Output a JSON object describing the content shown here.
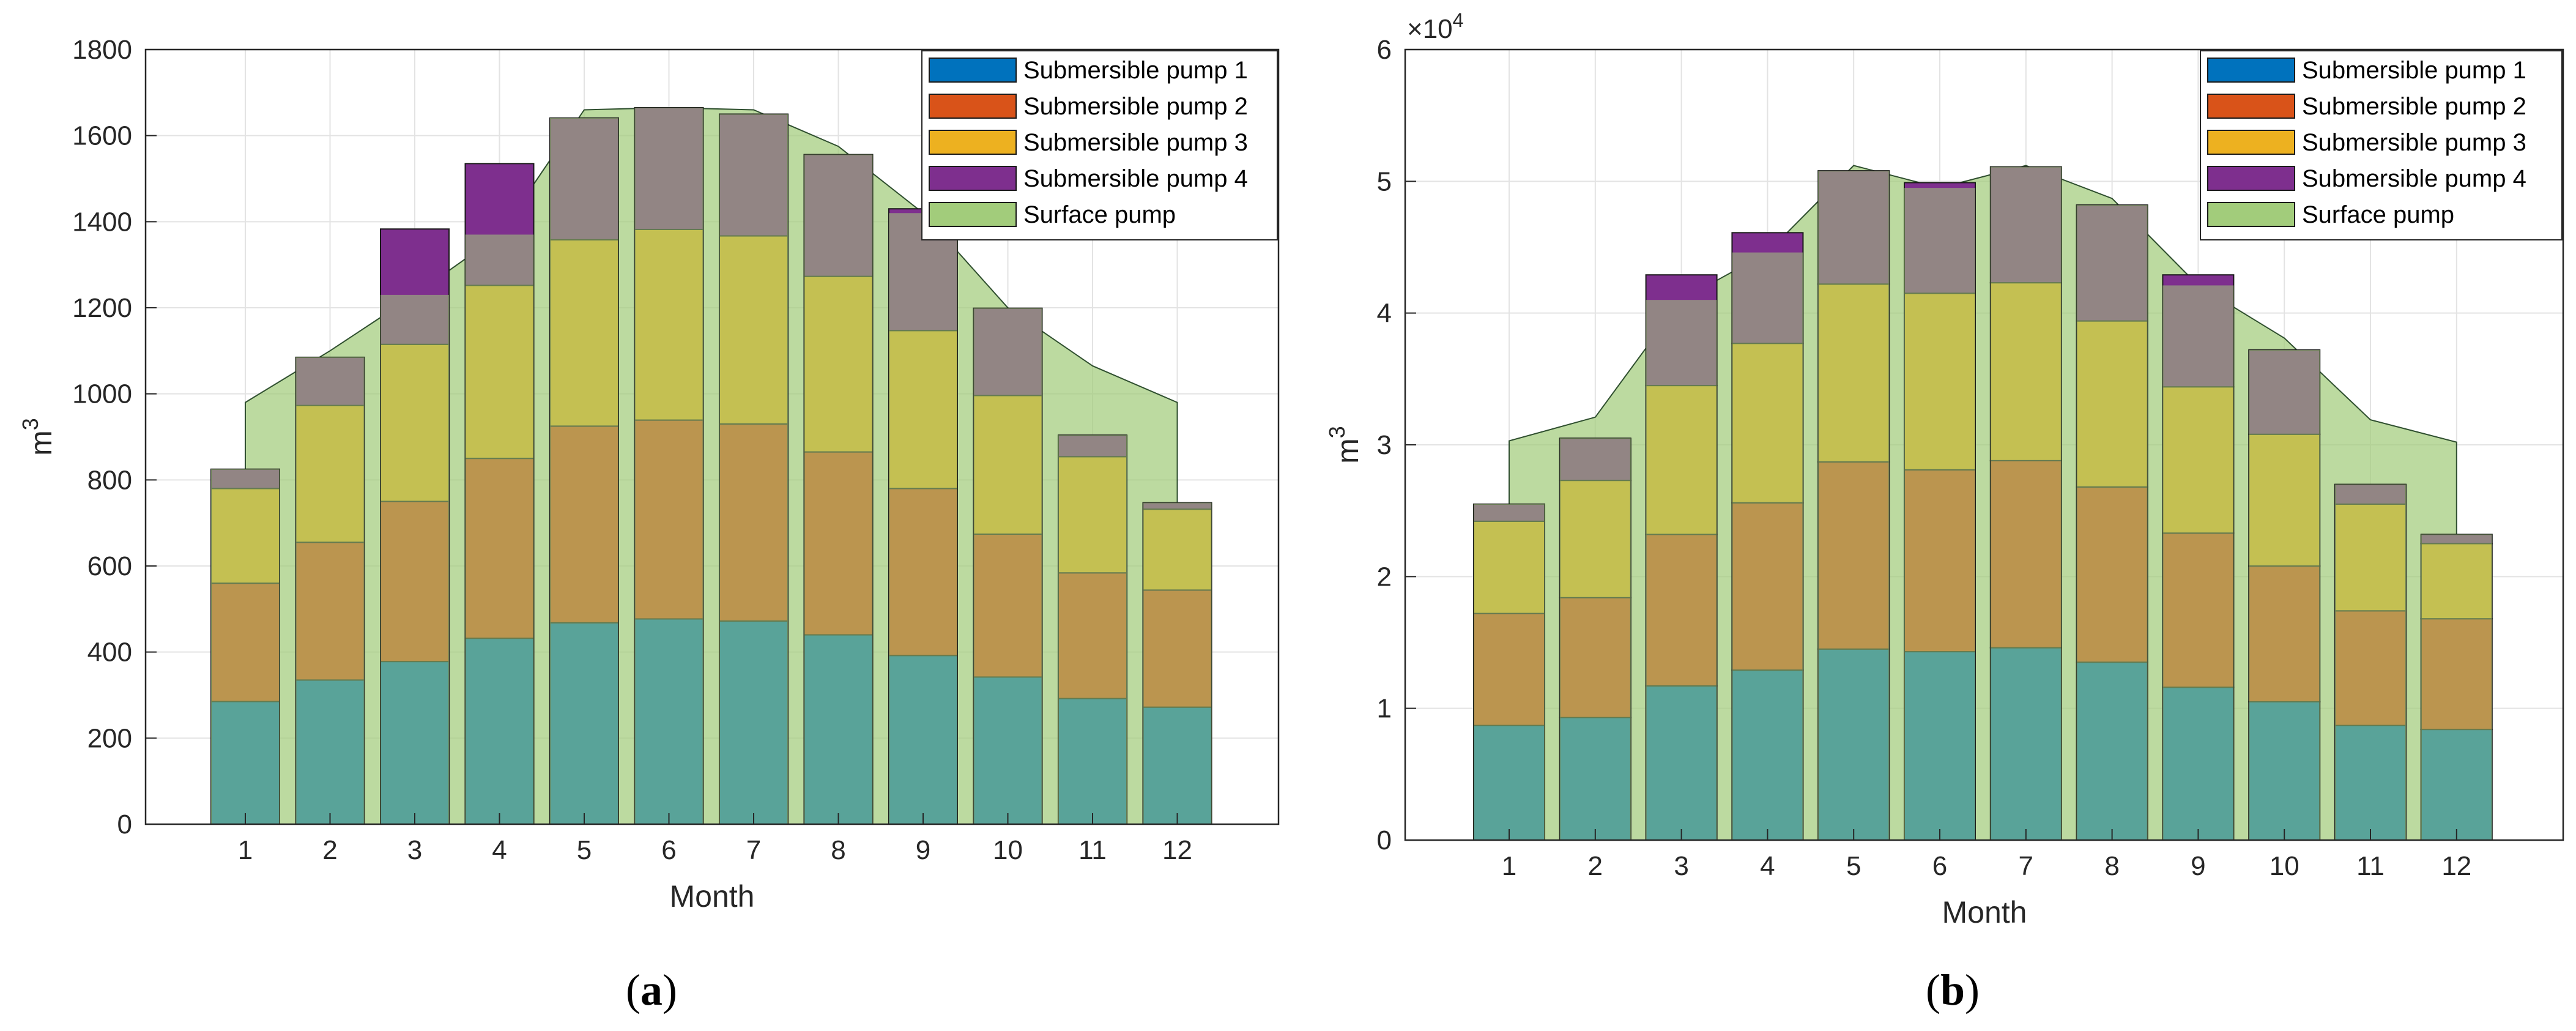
{
  "chart_data": [
    {
      "id": "a",
      "type": "bar",
      "subtype": "stacked-bar-with-area",
      "caption_letter": "a",
      "xlabel": "Month",
      "ylabel": "m",
      "ylabel_superscript": "3",
      "y_exponent_label": "",
      "categories": [
        "1",
        "2",
        "3",
        "4",
        "5",
        "6",
        "7",
        "8",
        "9",
        "10",
        "11",
        "12"
      ],
      "yticks": [
        "0",
        "200",
        "400",
        "600",
        "800",
        "1000",
        "1200",
        "1400",
        "1600",
        "1800"
      ],
      "ylim": [
        0,
        1800
      ],
      "grid": true,
      "legend_position": "top-right",
      "legend": [
        "Submersible pump 1",
        "Submersible pump 2",
        "Submersible pump 3",
        "Submersible pump 4",
        "Surface pump"
      ],
      "series": [
        {
          "name": "Submersible pump 1",
          "color": "#0072BD",
          "values": [
            285,
            335,
            378,
            432,
            468,
            477,
            472,
            440,
            392,
            342,
            292,
            272
          ]
        },
        {
          "name": "Submersible pump 2",
          "color": "#D95319",
          "values": [
            275,
            320,
            372,
            418,
            457,
            462,
            458,
            425,
            388,
            332,
            292,
            272
          ]
        },
        {
          "name": "Submersible pump 3",
          "color": "#EDB120",
          "values": [
            220,
            318,
            365,
            402,
            433,
            443,
            437,
            408,
            367,
            322,
            270,
            188
          ]
        },
        {
          "name": "Submersible pump 4",
          "color": "#7E2F8E",
          "values": [
            45,
            112,
            268,
            283,
            283,
            283,
            283,
            283,
            283,
            203,
            50,
            15
          ]
        },
        {
          "name": "Surface pump",
          "color": "#A2CC7B",
          "values": [
            980,
            1100,
            1230,
            1370,
            1660,
            1665,
            1660,
            1575,
            1420,
            1200,
            1065,
            980
          ]
        }
      ]
    },
    {
      "id": "b",
      "type": "bar",
      "subtype": "stacked-bar-with-area",
      "caption_letter": "b",
      "xlabel": "Month",
      "ylabel": "m",
      "ylabel_superscript": "3",
      "y_exponent_label": "×10",
      "y_exponent_power": "4",
      "categories": [
        "1",
        "2",
        "3",
        "4",
        "5",
        "6",
        "7",
        "8",
        "9",
        "10",
        "11",
        "12"
      ],
      "yticks": [
        "0",
        "1",
        "2",
        "3",
        "4",
        "5",
        "6"
      ],
      "ylim": [
        0,
        6
      ],
      "grid": true,
      "legend_position": "top-right",
      "legend": [
        "Submersible pump 1",
        "Submersible pump 2",
        "Submersible pump 3",
        "Submersible pump 4",
        "Surface pump"
      ],
      "series": [
        {
          "name": "Submersible pump 1",
          "color": "#0072BD",
          "values": [
            0.87,
            0.93,
            1.17,
            1.29,
            1.45,
            1.43,
            1.46,
            1.35,
            1.16,
            1.05,
            0.87,
            0.84
          ]
        },
        {
          "name": "Submersible pump 2",
          "color": "#D95319",
          "values": [
            0.85,
            0.91,
            1.15,
            1.27,
            1.42,
            1.38,
            1.42,
            1.33,
            1.17,
            1.03,
            0.87,
            0.84
          ]
        },
        {
          "name": "Submersible pump 3",
          "color": "#EDB120",
          "values": [
            0.7,
            0.89,
            1.13,
            1.21,
            1.35,
            1.34,
            1.35,
            1.26,
            1.11,
            1.0,
            0.81,
            0.57
          ]
        },
        {
          "name": "Submersible pump 4",
          "color": "#7E2F8E",
          "values": [
            0.13,
            0.32,
            0.84,
            0.84,
            0.86,
            0.84,
            0.88,
            0.88,
            0.85,
            0.64,
            0.15,
            0.07
          ]
        },
        {
          "name": "Surface pump",
          "color": "#A2CC7B",
          "values": [
            3.03,
            3.21,
            4.1,
            4.46,
            5.12,
            4.95,
            5.12,
            4.87,
            4.21,
            3.81,
            3.19,
            3.02
          ]
        }
      ]
    }
  ]
}
